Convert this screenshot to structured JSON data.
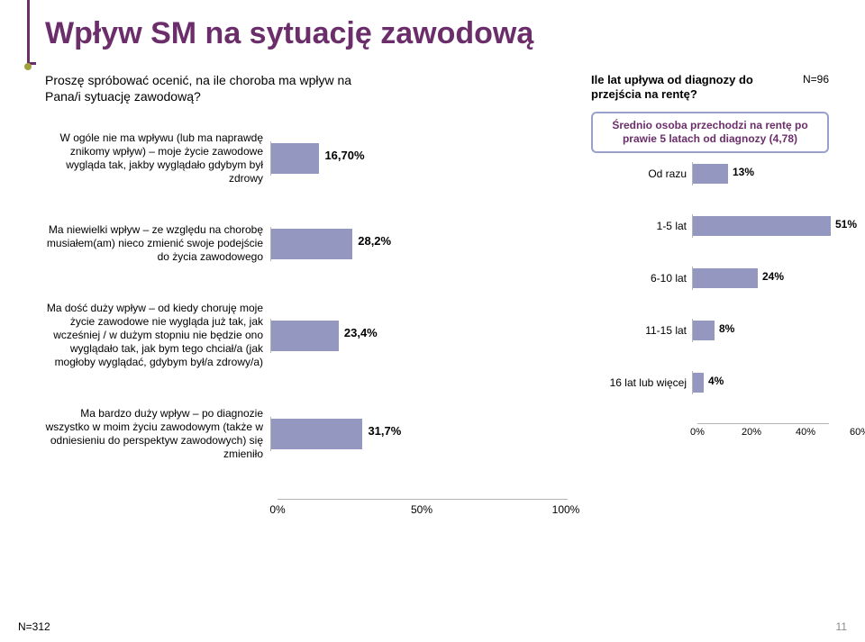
{
  "title": "Wpływ SM na sytuację zawodową",
  "title_color": "#6b2e6b",
  "accent_dot_color": "#9fa23c",
  "left_chart": {
    "question": "Proszę spróbować ocenić, na ile choroba ma wpływ na Pana/i sytuację zawodową?",
    "xmax": 100,
    "xticks": [
      "0%",
      "50%",
      "100%"
    ],
    "bar_color": "#9498c0",
    "rows": [
      {
        "label": "W ogóle nie ma wpływu (lub ma naprawdę znikomy wpływ) – moje życie zawodowe wygląda tak, jakby wyglądało gdybym był zdrowy",
        "value": 16.7,
        "text": "16,70%"
      },
      {
        "label": "Ma niewielki wpływ – ze względu na chorobę musiałem(am) nieco zmienić swoje podejście do życia zawodowego",
        "value": 28.2,
        "text": "28,2%"
      },
      {
        "label": "Ma dość duży wpływ – od kiedy choruję moje życie zawodowe nie wygląda już tak, jak wcześniej / w dużym stopniu nie będzie ono wyglądało tak, jak bym tego chciał/a (jak mogłoby wyglądać, gdybym był/a zdrowy/a)",
        "value": 23.4,
        "text": "23,4%"
      },
      {
        "label": "Ma bardzo duży wpływ – po diagnozie wszystko w moim życiu zawodowym (także w odniesieniu do perspektyw zawodowych) się zmieniło",
        "value": 31.7,
        "text": "31,7%"
      }
    ],
    "n_label": "N=312"
  },
  "right_chart": {
    "title": "Ile lat upływa od diagnozy do przejścia na rentę?",
    "n_label": "N=96",
    "callout": "Średnio osoba przechodzi na rentę po prawie 5 latach od diagnozy (4,78)",
    "callout_text_color": "#6b2e6b",
    "xmax": 60,
    "xticks": [
      "0%",
      "20%",
      "40%",
      "60%"
    ],
    "bar_color": "#9498c0",
    "rows": [
      {
        "label": "Od razu",
        "value": 13,
        "text": "13%"
      },
      {
        "label": "1-5 lat",
        "value": 51,
        "text": "51%"
      },
      {
        "label": "6-10 lat",
        "value": 24,
        "text": "24%"
      },
      {
        "label": "11-15 lat",
        "value": 8,
        "text": "8%"
      },
      {
        "label": "16 lat lub więcej",
        "value": 4,
        "text": "4%"
      }
    ]
  },
  "page_number": "11"
}
